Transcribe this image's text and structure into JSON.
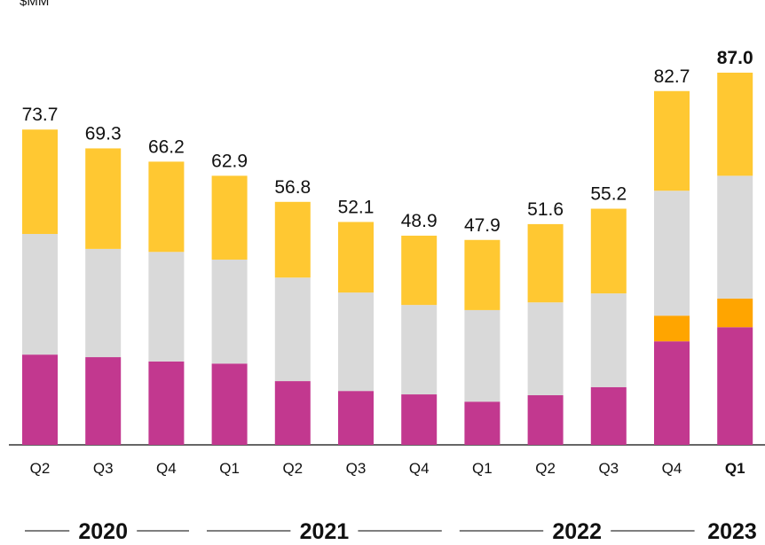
{
  "chart_data": {
    "type": "stacked_bar",
    "unit": "$MM",
    "categories": [
      "Q2",
      "Q3",
      "Q4",
      "Q1",
      "Q2",
      "Q3",
      "Q4",
      "Q1",
      "Q2",
      "Q3",
      "Q4",
      "Q1"
    ],
    "groups": [
      {
        "label": "2020",
        "start": 0,
        "end": 2
      },
      {
        "label": "2021",
        "start": 3,
        "end": 6
      },
      {
        "label": "2022",
        "start": 7,
        "end": 10
      },
      {
        "label": "2023",
        "start": 11,
        "end": 11
      }
    ],
    "series": [
      {
        "color": "#c2388f",
        "values": [
          21.1,
          20.5,
          19.5,
          19.0,
          14.9,
          12.6,
          11.8,
          10.1,
          11.6,
          13.5,
          24.2,
          27.5
        ]
      },
      {
        "color": "#ffa500",
        "values": [
          null,
          null,
          null,
          null,
          null,
          null,
          null,
          null,
          null,
          null,
          6.0,
          6.7
        ]
      },
      {
        "color": "#d9d9d9",
        "values": [
          28.2,
          25.3,
          25.6,
          24.3,
          24.2,
          23.0,
          20.9,
          21.4,
          21.7,
          21.9,
          29.2,
          28.7
        ]
      },
      {
        "color": "#ffc832",
        "values": [
          24.4,
          23.5,
          21.1,
          19.6,
          17.7,
          16.5,
          16.2,
          16.4,
          18.3,
          19.8,
          23.3,
          24.1
        ]
      }
    ],
    "totals": [
      73.7,
      69.3,
      66.2,
      62.9,
      56.8,
      52.1,
      48.9,
      47.9,
      51.6,
      55.2,
      82.7,
      87.0
    ],
    "total_labels": [
      "73.7",
      "69.3",
      "66.2",
      "62.9",
      "56.8",
      "52.1",
      "48.9",
      "47.9",
      "51.6",
      "55.2",
      "82.7",
      "87.0"
    ],
    "highlight_index": 11
  }
}
